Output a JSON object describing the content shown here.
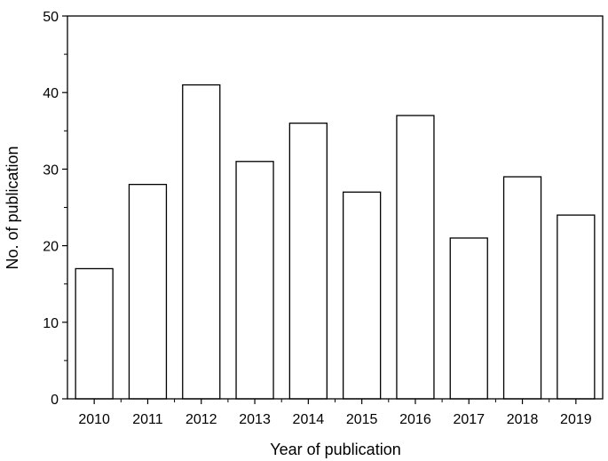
{
  "chart_data": {
    "type": "bar",
    "title": "",
    "xlabel": "Year of publication",
    "ylabel": "No. of publication",
    "categories": [
      "2010",
      "2011",
      "2012",
      "2013",
      "2014",
      "2015",
      "2016",
      "2017",
      "2018",
      "2019"
    ],
    "values": [
      17,
      28,
      41,
      31,
      36,
      27,
      37,
      21,
      29,
      24
    ],
    "ylim": [
      0,
      50
    ],
    "yticks": [
      0,
      10,
      20,
      30,
      40,
      50
    ],
    "grid": false,
    "bar_fill": "#ffffff",
    "bar_stroke": "#000000"
  }
}
